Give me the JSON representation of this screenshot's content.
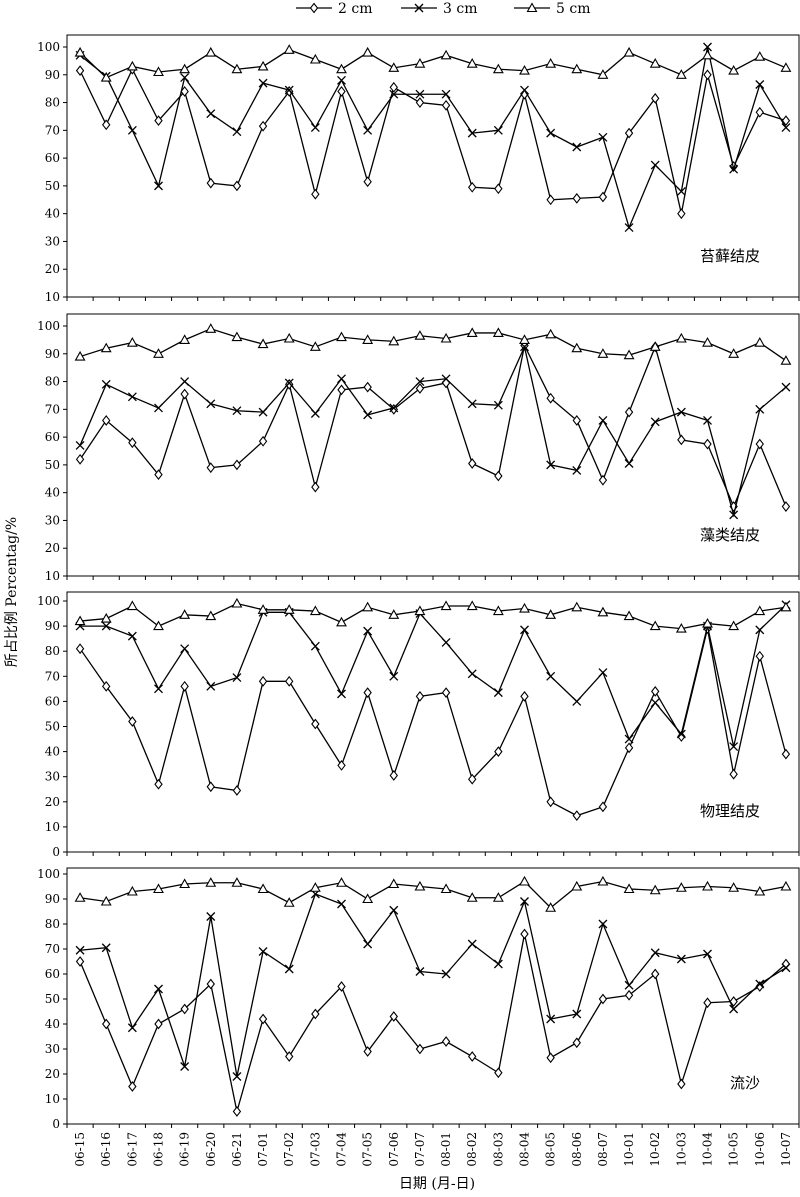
{
  "chart_data": {
    "type": "line",
    "xlabel": "日期 (月-日)",
    "ylabel": "所占比例 Percentag/%",
    "x": [
      "06-15",
      "06-16",
      "06-17",
      "06-18",
      "06-19",
      "06-20",
      "06-21",
      "07-01",
      "07-02",
      "07-03",
      "07-04",
      "07-05",
      "07-06",
      "07-07",
      "08-01",
      "08-02",
      "08-03",
      "08-04",
      "08-05",
      "08-06",
      "08-07",
      "10-01",
      "10-02",
      "10-03",
      "10-04",
      "10-05",
      "10-06",
      "10-07"
    ],
    "ylim": [
      0,
      100
    ],
    "legend": {
      "placement": "top-center",
      "entries": [
        {
          "label": "2 cm",
          "marker": "diamond"
        },
        {
          "label": "3 cm",
          "marker": "x"
        },
        {
          "label": "5 cm",
          "marker": "triangle"
        }
      ]
    },
    "panels": [
      {
        "label": "苔藓结皮",
        "yticks": [
          10,
          20,
          30,
          40,
          50,
          60,
          70,
          80,
          90,
          100
        ],
        "series": [
          {
            "name": "2 cm",
            "values": [
              91.5,
              72,
              92,
              73.5,
              84,
              51,
              50,
              71.5,
              84,
              47,
              84,
              51.5,
              85.5,
              80,
              79,
              49.5,
              49,
              83,
              45,
              45.5,
              46,
              69,
              81.5,
              40,
              90,
              57,
              76.5,
              73.5
            ]
          },
          {
            "name": "3 cm",
            "values": [
              97,
              89.5,
              70,
              50,
              89,
              76,
              69.5,
              87,
              84.5,
              71,
              88,
              70,
              83,
              83,
              83,
              69,
              70,
              84.5,
              69,
              64,
              67.5,
              35,
              57.5,
              48,
              100,
              56,
              86.5,
              71
            ]
          },
          {
            "name": "5 cm",
            "values": [
              98,
              89,
              93,
              91,
              92,
              98,
              92,
              93,
              99,
              95.5,
              92,
              98,
              92.5,
              94,
              97,
              94,
              92,
              91.5,
              94,
              92,
              90,
              98,
              94,
              90,
              97,
              91.5,
              96.5,
              92.5
            ]
          }
        ]
      },
      {
        "label": "藻类结皮",
        "yticks": [
          10,
          20,
          30,
          40,
          50,
          60,
          70,
          80,
          90,
          100
        ],
        "series": [
          {
            "name": "2 cm",
            "values": [
              52,
              66,
              58,
              46.5,
              75.5,
              49,
              50,
              58.5,
              79,
              42,
              77,
              78,
              70,
              77.5,
              79.5,
              50.5,
              46,
              93,
              74,
              66,
              44.5,
              69,
              92.5,
              59,
              57.5,
              35,
              57.5,
              35
            ]
          },
          {
            "name": "3 cm",
            "values": [
              57,
              79,
              74.5,
              70.5,
              80,
              72,
              69.5,
              69,
              79.5,
              68.5,
              81,
              68,
              70.5,
              80,
              81,
              72,
              71.5,
              92.5,
              50,
              48,
              66,
              50.5,
              65.5,
              69,
              66,
              32,
              70,
              78
            ]
          },
          {
            "name": "5 cm",
            "values": [
              89,
              92,
              94,
              90,
              95,
              99,
              96,
              93.5,
              95.5,
              92.5,
              96,
              95,
              94.5,
              96.5,
              95.5,
              97.5,
              97.5,
              95,
              97,
              92,
              90,
              89.5,
              92.5,
              95.5,
              94,
              90,
              94,
              87.5
            ]
          }
        ]
      },
      {
        "label": "物理结皮",
        "yticks": [
          0,
          10,
          20,
          30,
          40,
          50,
          60,
          70,
          80,
          90,
          100
        ],
        "series": [
          {
            "name": "2 cm",
            "values": [
              81,
              66,
              52,
              27,
              66,
              26,
              24.5,
              68,
              68,
              51,
              34.5,
              63.5,
              30.5,
              62,
              63.5,
              29,
              40,
              62,
              20,
              14.5,
              18,
              41.5,
              64,
              46,
              89,
              31,
              78,
              39
            ]
          },
          {
            "name": "3 cm",
            "values": [
              90,
              90,
              86,
              65,
              81,
              66,
              69.5,
              95.5,
              95.5,
              82,
              63,
              88,
              70,
              95,
              83.5,
              71,
              63.5,
              88.5,
              70,
              60,
              71.5,
              45,
              59.5,
              47,
              90,
              42,
              88.5,
              98.5
            ]
          },
          {
            "name": "5 cm",
            "values": [
              92,
              93,
              98,
              90,
              94.5,
              94,
              99,
              96.5,
              96.5,
              96,
              91.5,
              97.5,
              94.5,
              96,
              98,
              98,
              96,
              97,
              94.5,
              97.5,
              95.5,
              94,
              90,
              89,
              91,
              90,
              96,
              97.5
            ]
          }
        ]
      },
      {
        "label": "流沙",
        "yticks": [
          0,
          10,
          20,
          30,
          40,
          50,
          60,
          70,
          80,
          90,
          100
        ],
        "series": [
          {
            "name": "2 cm",
            "values": [
              65,
              40,
              15,
              40,
              46,
              56,
              5,
              42,
              27,
              44,
              55,
              29,
              43,
              30,
              33,
              27,
              20.5,
              76,
              26.5,
              32.5,
              50,
              51.5,
              60,
              16,
              48.5,
              49,
              55,
              64
            ]
          },
          {
            "name": "3 cm",
            "values": [
              69.5,
              70.5,
              38.5,
              54,
              23,
              83,
              19,
              69,
              62,
              92,
              88,
              72,
              85.5,
              61,
              60,
              72,
              64,
              89,
              42,
              44,
              80,
              55.5,
              68.5,
              66,
              68,
              46,
              56,
              62.5
            ]
          },
          {
            "name": "5 cm",
            "values": [
              90.5,
              89,
              93,
              94,
              96,
              96.5,
              96.5,
              94,
              88.5,
              94.5,
              96.5,
              90,
              96,
              95,
              94,
              90.5,
              90.5,
              97,
              86.5,
              95,
              97,
              94,
              93.5,
              94.5,
              95,
              94.5,
              93,
              95
            ]
          }
        ]
      }
    ]
  }
}
